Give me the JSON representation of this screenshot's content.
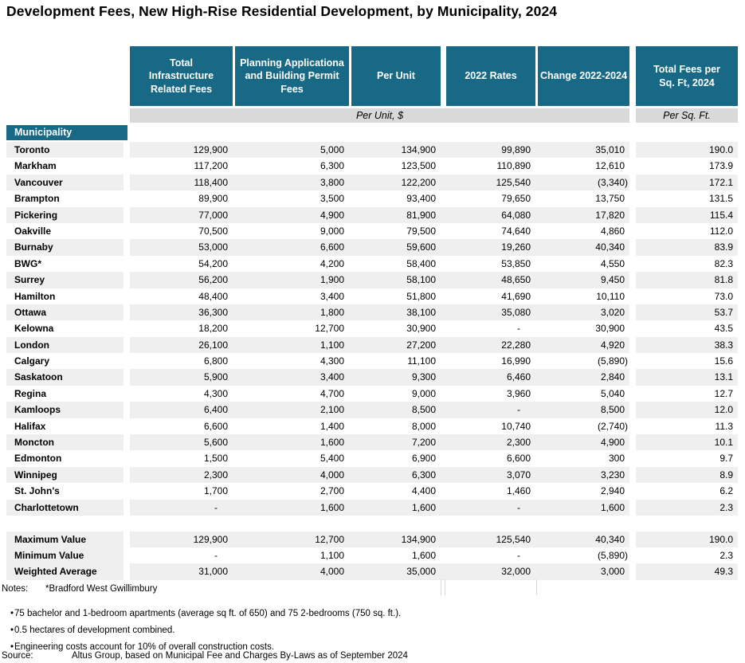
{
  "title": "Development Fees, New High-Rise Residential Development, by Municipality, 2024",
  "colors": {
    "header_teal": "#176986",
    "row_stripe": "#efefef",
    "unit_band_gray": "#d9d9d9"
  },
  "chart_data": {
    "type": "table",
    "title": "Development Fees, New High-Rise Residential Development, by Municipality, 2024",
    "row_header": "Municipality",
    "columns": [
      {
        "label": "Total Infrastructure Related Fees"
      },
      {
        "label": "Planning Applicationa and Building Permit Fees"
      },
      {
        "label": "Per Unit"
      },
      {
        "label": "2022 Rates"
      },
      {
        "label": "Change 2022-2024"
      },
      {
        "label": "Total Fees per Sq. Ft, 2024"
      }
    ],
    "unit_band": "Per Unit, $",
    "sqft_band": "Per Sq. Ft.",
    "rows": [
      {
        "name": "Toronto",
        "values": [
          "129,900",
          "5,000",
          "134,900",
          "99,890",
          "35,010",
          "190.0"
        ]
      },
      {
        "name": "Markham",
        "values": [
          "117,200",
          "6,300",
          "123,500",
          "110,890",
          "12,610",
          "173.9"
        ]
      },
      {
        "name": "Vancouver",
        "values": [
          "118,400",
          "3,800",
          "122,200",
          "125,540",
          "(3,340)",
          "172.1"
        ]
      },
      {
        "name": "Brampton",
        "values": [
          "89,900",
          "3,500",
          "93,400",
          "79,650",
          "13,750",
          "131.5"
        ]
      },
      {
        "name": "Pickering",
        "values": [
          "77,000",
          "4,900",
          "81,900",
          "64,080",
          "17,820",
          "115.4"
        ]
      },
      {
        "name": "Oakville",
        "values": [
          "70,500",
          "9,000",
          "79,500",
          "74,640",
          "4,860",
          "112.0"
        ]
      },
      {
        "name": "Burnaby",
        "values": [
          "53,000",
          "6,600",
          "59,600",
          "19,260",
          "40,340",
          "83.9"
        ]
      },
      {
        "name": "BWG*",
        "values": [
          "54,200",
          "4,200",
          "58,400",
          "53,850",
          "4,550",
          "82.3"
        ]
      },
      {
        "name": "Surrey",
        "values": [
          "56,200",
          "1,900",
          "58,100",
          "48,650",
          "9,450",
          "81.8"
        ]
      },
      {
        "name": "Hamilton",
        "values": [
          "48,400",
          "3,400",
          "51,800",
          "41,690",
          "10,110",
          "73.0"
        ]
      },
      {
        "name": "Ottawa",
        "values": [
          "36,300",
          "1,800",
          "38,100",
          "35,080",
          "3,020",
          "53.7"
        ]
      },
      {
        "name": "Kelowna",
        "values": [
          "18,200",
          "12,700",
          "30,900",
          "-",
          "30,900",
          "43.5"
        ]
      },
      {
        "name": "London",
        "values": [
          "26,100",
          "1,100",
          "27,200",
          "22,280",
          "4,920",
          "38.3"
        ]
      },
      {
        "name": "Calgary",
        "values": [
          "6,800",
          "4,300",
          "11,100",
          "16,990",
          "(5,890)",
          "15.6"
        ]
      },
      {
        "name": "Saskatoon",
        "values": [
          "5,900",
          "3,400",
          "9,300",
          "6,460",
          "2,840",
          "13.1"
        ]
      },
      {
        "name": "Regina",
        "values": [
          "4,300",
          "4,700",
          "9,000",
          "3,960",
          "5,040",
          "12.7"
        ]
      },
      {
        "name": "Kamloops",
        "values": [
          "6,400",
          "2,100",
          "8,500",
          "-",
          "8,500",
          "12.0"
        ]
      },
      {
        "name": "Halifax",
        "values": [
          "6,600",
          "1,400",
          "8,000",
          "10,740",
          "(2,740)",
          "11.3"
        ]
      },
      {
        "name": "Moncton",
        "values": [
          "5,600",
          "1,600",
          "7,200",
          "2,300",
          "4,900",
          "10.1"
        ]
      },
      {
        "name": "Edmonton",
        "values": [
          "1,500",
          "5,400",
          "6,900",
          "6,600",
          "300",
          "9.7"
        ]
      },
      {
        "name": "Winnipeg",
        "values": [
          "2,300",
          "4,000",
          "6,300",
          "3,070",
          "3,230",
          "8.9"
        ]
      },
      {
        "name": "St. John's",
        "values": [
          "1,700",
          "2,700",
          "4,400",
          "1,460",
          "2,940",
          "6.2"
        ]
      },
      {
        "name": "Charlottetown",
        "values": [
          "-",
          "1,600",
          "1,600",
          "-",
          "1,600",
          "2.3"
        ]
      }
    ],
    "summary_rows": [
      {
        "name": "Maximum Value",
        "values": [
          "129,900",
          "12,700",
          "134,900",
          "125,540",
          "40,340",
          "190.0"
        ]
      },
      {
        "name": "Minimum Value",
        "values": [
          "-",
          "1,100",
          "1,600",
          "-",
          "(5,890)",
          "2.3"
        ]
      },
      {
        "name": "Weighted Average",
        "values": [
          "31,000",
          "4,000",
          "35,000",
          "32,000",
          "3,000",
          "49.3"
        ]
      }
    ]
  },
  "notes": {
    "label": "Notes:",
    "text": "*Bradford West Gwillimbury",
    "bullets": [
      "75 bachelor and 1-bedroom apartments (average sq ft. of 650) and 75 2-bedrooms (750 sq. ft.).",
      "0.5 hectares of development combined.",
      "Engineering costs account for 10% of overall construction costs."
    ]
  },
  "source": {
    "label": "Source:",
    "text": "Altus Group, based on  Municipal Fee and Charges By-Laws as of September 2024"
  }
}
